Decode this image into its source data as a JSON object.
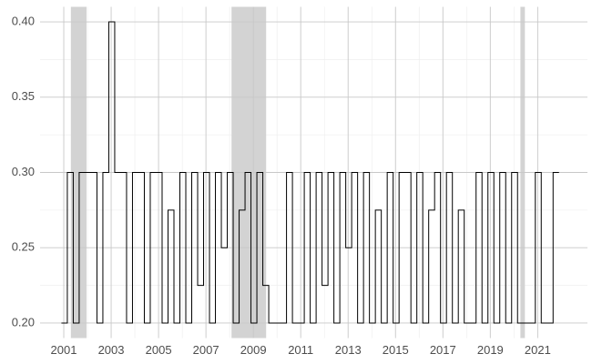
{
  "chart_data": {
    "type": "step",
    "x": [
      2000.9,
      2001.15,
      2001.4,
      2001.65,
      2001.9,
      2002.15,
      2002.4,
      2002.65,
      2002.9,
      2003.15,
      2003.4,
      2003.65,
      2003.9,
      2004.15,
      2004.4,
      2004.65,
      2004.9,
      2005.15,
      2005.4,
      2005.65,
      2005.9,
      2006.15,
      2006.4,
      2006.65,
      2006.9,
      2007.15,
      2007.4,
      2007.65,
      2007.9,
      2008.15,
      2008.4,
      2008.65,
      2008.9,
      2009.15,
      2009.4,
      2009.65,
      2009.9,
      2010.15,
      2010.4,
      2010.65,
      2010.9,
      2011.15,
      2011.4,
      2011.65,
      2011.9,
      2012.15,
      2012.4,
      2012.65,
      2012.9,
      2013.15,
      2013.4,
      2013.65,
      2013.9,
      2014.15,
      2014.4,
      2014.65,
      2014.9,
      2015.15,
      2015.4,
      2015.65,
      2015.9,
      2016.15,
      2016.4,
      2016.65,
      2016.9,
      2017.15,
      2017.4,
      2017.65,
      2017.9,
      2018.15,
      2018.4,
      2018.65,
      2018.9,
      2019.15,
      2019.4,
      2019.65,
      2019.9,
      2020.15,
      2020.4,
      2020.65,
      2020.9,
      2021.15,
      2021.4,
      2021.65,
      2021.9
    ],
    "values": [
      0.2,
      0.3,
      0.2,
      0.3,
      0.3,
      0.3,
      0.2,
      0.3,
      0.4,
      0.3,
      0.3,
      0.2,
      0.3,
      0.3,
      0.2,
      0.3,
      0.3,
      0.2,
      0.275,
      0.2,
      0.3,
      0.2,
      0.3,
      0.225,
      0.3,
      0.2,
      0.3,
      0.25,
      0.3,
      0.2,
      0.275,
      0.3,
      0.2,
      0.3,
      0.225,
      0.2,
      0.2,
      0.2,
      0.3,
      0.2,
      0.2,
      0.3,
      0.2,
      0.3,
      0.225,
      0.3,
      0.2,
      0.3,
      0.25,
      0.3,
      0.2,
      0.3,
      0.2,
      0.275,
      0.2,
      0.3,
      0.2,
      0.3,
      0.3,
      0.2,
      0.3,
      0.2,
      0.275,
      0.3,
      0.2,
      0.3,
      0.2,
      0.275,
      0.2,
      0.2,
      0.3,
      0.2,
      0.3,
      0.2,
      0.3,
      0.2,
      0.3,
      0.2,
      0.2,
      0.2,
      0.3,
      0.2,
      0.2,
      0.3,
      0.3
    ],
    "color": "#000000",
    "shaded_spans": [
      [
        2001.3,
        2001.96
      ],
      [
        2008.08,
        2009.54
      ],
      [
        2020.27,
        2020.46
      ]
    ],
    "shade_color": "#d3d3d3",
    "xlim": [
      2000.0,
      2023.1
    ],
    "ylim": [
      0.19,
      0.41
    ],
    "xticks": [
      2001,
      2003,
      2005,
      2007,
      2009,
      2011,
      2013,
      2015,
      2017,
      2019,
      2021
    ],
    "yticks": [
      {
        "value": 0.2,
        "label": "0.20"
      },
      {
        "value": 0.25,
        "label": "0.25"
      },
      {
        "value": 0.3,
        "label": "0.30"
      },
      {
        "value": 0.35,
        "label": "0.35"
      },
      {
        "value": 0.4,
        "label": "0.40"
      }
    ],
    "grid": true,
    "minor_grid": true
  }
}
